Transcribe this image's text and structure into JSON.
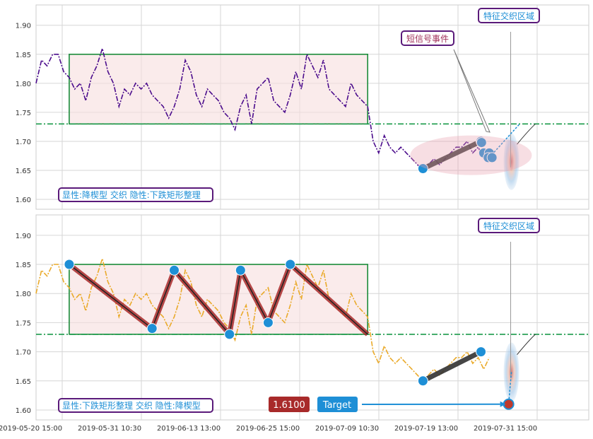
{
  "chart_data": {
    "type": "line",
    "x_ticks": [
      "2019-05-20 15:00",
      "2019-05-31 10:30",
      "2019-06-13 13:00",
      "2019-06-25 15:00",
      "2019-07-09 10:30",
      "2019-07-19 13:00",
      "2019-07-31 15:00"
    ],
    "y_ticks": [
      "1.90",
      "1.85",
      "1.80",
      "1.75",
      "1.70",
      "1.65",
      "1.60"
    ],
    "ylim": [
      1.583,
      1.935
    ],
    "grid": true,
    "reference_line": 1.73,
    "rectangle": {
      "x0": 0.06,
      "x1": 0.6,
      "y_low": 1.73,
      "y_high": 1.85
    },
    "panels": [
      {
        "name": "top",
        "pattern_label": "显性:降楔型 交织 隐性:下跌矩形整理",
        "annotations": {
          "feature_area": "特征交织区域",
          "signal": "短信号事件"
        },
        "series_color": "#4B0C8C",
        "wedge_points": [
          [
            0.7,
            1.653
          ],
          [
            0.805,
            1.7
          ]
        ],
        "cluster_points": [
          [
            0.806,
            1.698
          ],
          [
            0.81,
            1.68
          ],
          [
            0.82,
            1.68
          ],
          [
            0.818,
            1.672
          ],
          [
            0.825,
            1.672
          ]
        ]
      },
      {
        "name": "bottom",
        "pattern_label": "显性:下跌矩形整理 交织 隐性:降楔型",
        "annotations": {
          "feature_area": "特征交织区域",
          "price_value": "1.6100",
          "target_label": "Target"
        },
        "series_color": "#EAAA2A",
        "zigzag_points": [
          [
            0.06,
            1.85
          ],
          [
            0.21,
            1.74
          ],
          [
            0.25,
            1.84
          ],
          [
            0.35,
            1.73
          ],
          [
            0.37,
            1.84
          ],
          [
            0.42,
            1.75
          ],
          [
            0.46,
            1.85
          ],
          [
            0.6,
            1.73
          ]
        ],
        "wedge_points": [
          [
            0.7,
            1.65
          ],
          [
            0.805,
            1.7
          ]
        ],
        "target_point": [
          0.855,
          1.61
        ]
      }
    ],
    "series": [
      {
        "name": "",
        "x": [
          0.0,
          0.01,
          0.02,
          0.03,
          0.04,
          0.05,
          0.06,
          0.07,
          0.08,
          0.09,
          0.1,
          0.11,
          0.12,
          0.13,
          0.14,
          0.15,
          0.16,
          0.17,
          0.18,
          0.19,
          0.2,
          0.21,
          0.22,
          0.23,
          0.24,
          0.25,
          0.26,
          0.27,
          0.28,
          0.29,
          0.3,
          0.31,
          0.32,
          0.33,
          0.34,
          0.35,
          0.36,
          0.37,
          0.38,
          0.39,
          0.4,
          0.41,
          0.42,
          0.43,
          0.44,
          0.45,
          0.46,
          0.47,
          0.48,
          0.49,
          0.5,
          0.51,
          0.52,
          0.53,
          0.54,
          0.55,
          0.56,
          0.57,
          0.58,
          0.59,
          0.6,
          0.61,
          0.62,
          0.63,
          0.64,
          0.65,
          0.66,
          0.67,
          0.68,
          0.69,
          0.7,
          0.71,
          0.72,
          0.73,
          0.74,
          0.75,
          0.76,
          0.77,
          0.78,
          0.79,
          0.8,
          0.81,
          0.82
        ],
        "values": [
          1.8,
          1.84,
          1.83,
          1.85,
          1.85,
          1.82,
          1.81,
          1.79,
          1.8,
          1.77,
          1.81,
          1.83,
          1.86,
          1.82,
          1.8,
          1.76,
          1.79,
          1.78,
          1.8,
          1.79,
          1.8,
          1.78,
          1.77,
          1.76,
          1.74,
          1.76,
          1.79,
          1.84,
          1.82,
          1.78,
          1.76,
          1.79,
          1.78,
          1.77,
          1.75,
          1.74,
          1.72,
          1.76,
          1.78,
          1.73,
          1.79,
          1.8,
          1.81,
          1.77,
          1.76,
          1.75,
          1.78,
          1.82,
          1.79,
          1.85,
          1.83,
          1.81,
          1.84,
          1.79,
          1.78,
          1.77,
          1.76,
          1.8,
          1.78,
          1.77,
          1.76,
          1.7,
          1.68,
          1.71,
          1.69,
          1.68,
          1.69,
          1.68,
          1.67,
          1.66,
          1.65,
          1.66,
          1.67,
          1.66,
          1.67,
          1.68,
          1.69,
          1.69,
          1.7,
          1.68,
          1.69,
          1.67,
          1.69
        ]
      }
    ]
  }
}
